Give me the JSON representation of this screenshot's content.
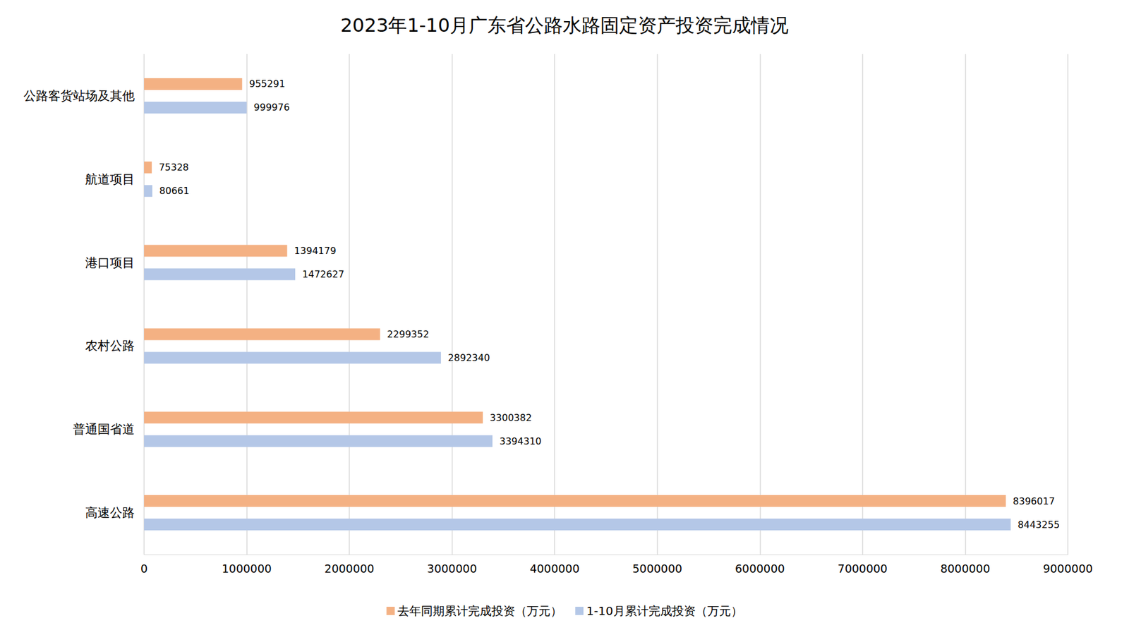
{
  "chart_data": {
    "type": "bar",
    "title": "2023年1-10月广东省公路水路固定资产投资完成情况",
    "orientation": "horizontal",
    "categories": [
      "高速公路",
      "普通国省道",
      "农村公路",
      "港口项目",
      "航道项目",
      "公路客货站场及其他"
    ],
    "series": [
      {
        "name": "去年同期累计完成投资（万元）",
        "color": "#F4B183",
        "values": [
          8396017,
          3300382,
          2299352,
          1394179,
          75328,
          955291
        ]
      },
      {
        "name": "1-10月累计完成投资（万元）",
        "color": "#B4C7E7",
        "values": [
          8443255,
          3394310,
          2892340,
          1472627,
          80661,
          999976
        ]
      }
    ],
    "xlim": [
      0,
      9000000
    ],
    "xticks": [
      0,
      1000000,
      2000000,
      3000000,
      4000000,
      5000000,
      6000000,
      7000000,
      8000000,
      9000000
    ],
    "grid": true,
    "legend": "bottom",
    "data_labels": true
  }
}
